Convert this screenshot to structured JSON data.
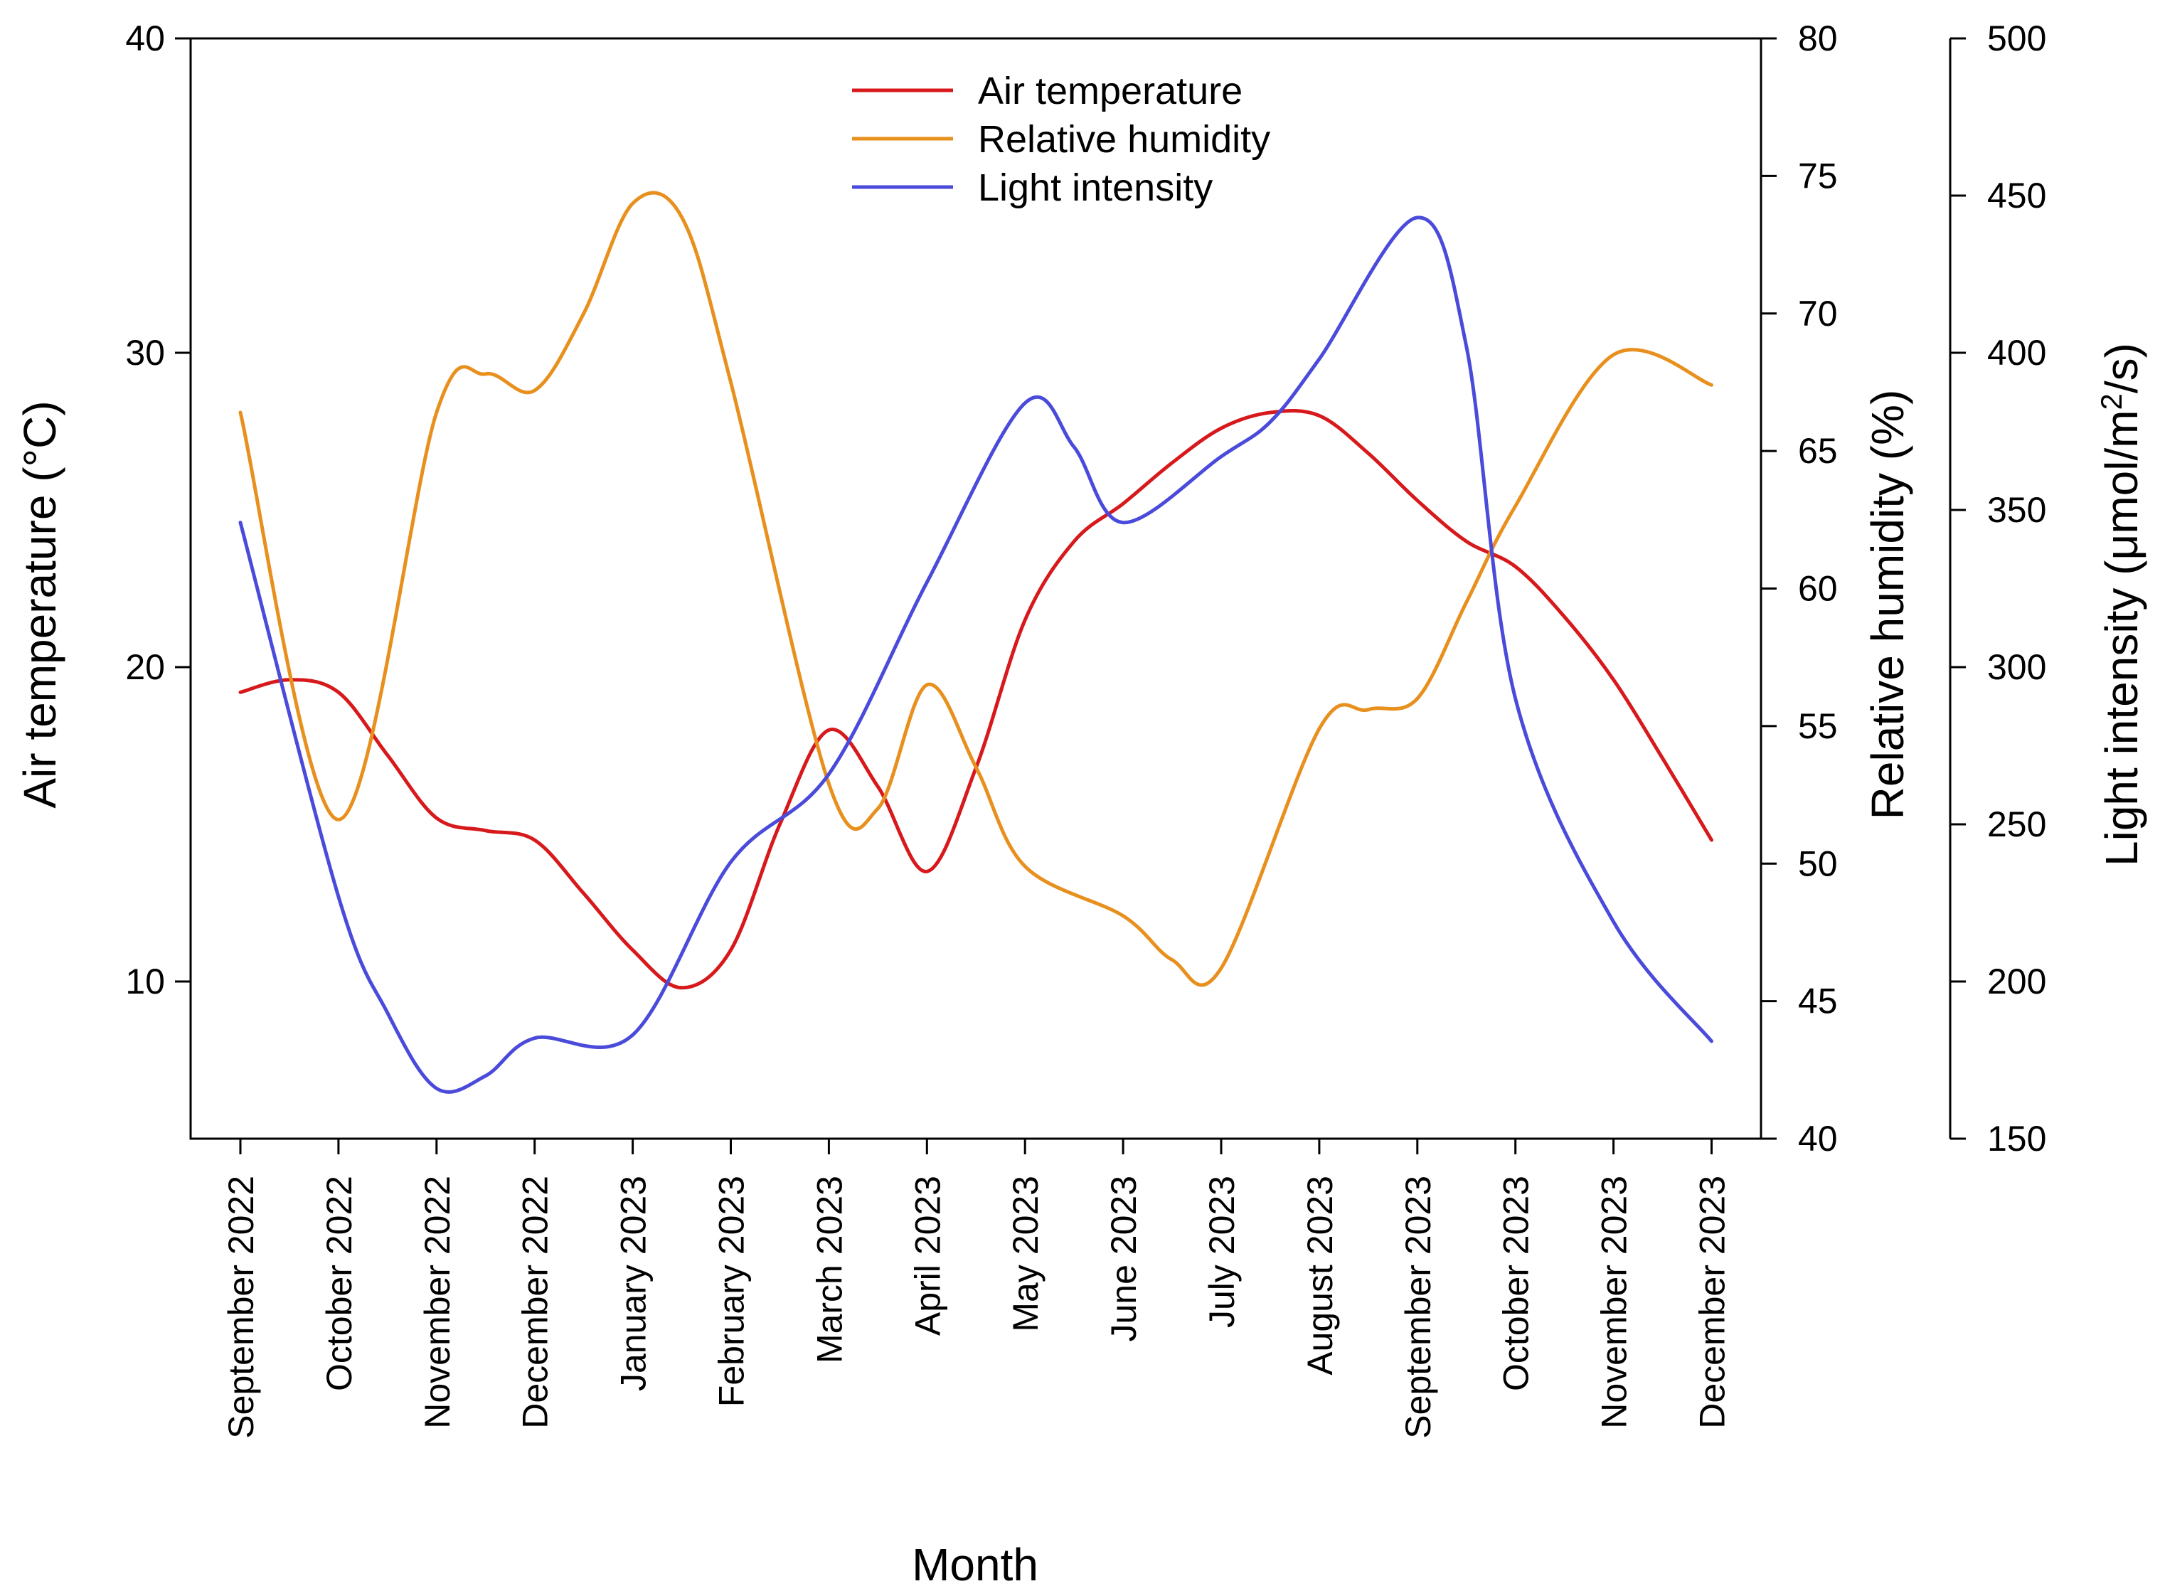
{
  "chart_data": {
    "type": "line",
    "xlabel": "Month",
    "categories": [
      "September 2022",
      "October 2022",
      "November 2022",
      "December 2022",
      "January 2023",
      "February 2023",
      "March 2023",
      "April 2023",
      "May 2023",
      "June 2023",
      "July 2023",
      "August 2023",
      "September 2023",
      "October 2023",
      "November 2023",
      "December 2023"
    ],
    "axes": {
      "left": {
        "label": "Air temperature (°C)",
        "range": [
          5,
          40
        ],
        "ticks": [
          10,
          20,
          30,
          40
        ]
      },
      "right1": {
        "label": "Relative humidity  (%)",
        "range": [
          40,
          80
        ],
        "ticks": [
          40,
          45,
          50,
          55,
          60,
          65,
          70,
          75,
          80
        ]
      },
      "right2": {
        "label_prefix": "Light intensity (μmol/m",
        "label_sup": "2",
        "label_suffix": "/s)",
        "range": [
          150,
          500
        ],
        "ticks": [
          150,
          200,
          250,
          300,
          350,
          400,
          450,
          500
        ]
      }
    },
    "series": [
      {
        "name": "Air temperature",
        "axis": "left",
        "color": "#d7191c",
        "points": [
          [
            0,
            19.2
          ],
          [
            0.5,
            19.6
          ],
          [
            1,
            19.2
          ],
          [
            1.5,
            17.2
          ],
          [
            2,
            15.2
          ],
          [
            2.5,
            14.8
          ],
          [
            3,
            14.5
          ],
          [
            3.5,
            12.8
          ],
          [
            4,
            11.0
          ],
          [
            4.5,
            9.8
          ],
          [
            5,
            11.0
          ],
          [
            5.5,
            15.0
          ],
          [
            6,
            18.0
          ],
          [
            6.5,
            16.2
          ],
          [
            7,
            13.5
          ],
          [
            7.5,
            16.8
          ],
          [
            8,
            21.5
          ],
          [
            8.5,
            24.0
          ],
          [
            9,
            25.2
          ],
          [
            9.5,
            26.5
          ],
          [
            10,
            27.6
          ],
          [
            10.5,
            28.1
          ],
          [
            11,
            28.0
          ],
          [
            11.5,
            26.8
          ],
          [
            12,
            25.3
          ],
          [
            12.5,
            24.0
          ],
          [
            13,
            23.2
          ],
          [
            13.5,
            21.6
          ],
          [
            14,
            19.6
          ],
          [
            14.5,
            17.1
          ],
          [
            15,
            14.5
          ]
        ]
      },
      {
        "name": "Relative humidity",
        "axis": "right1",
        "color": "#e8901e",
        "points": [
          [
            0,
            66.4
          ],
          [
            1,
            51.6
          ],
          [
            2,
            66.4
          ],
          [
            2.5,
            67.8
          ],
          [
            3,
            67.2
          ],
          [
            3.5,
            70.0
          ],
          [
            4,
            74.0
          ],
          [
            4.5,
            73.5
          ],
          [
            5,
            67.5
          ],
          [
            6,
            52.9
          ],
          [
            6.5,
            52.0
          ],
          [
            7,
            56.5
          ],
          [
            7.5,
            53.5
          ],
          [
            8,
            49.9
          ],
          [
            9,
            48.1
          ],
          [
            9.5,
            46.5
          ],
          [
            10,
            46.2
          ],
          [
            11,
            54.9
          ],
          [
            11.5,
            55.6
          ],
          [
            12,
            56.0
          ],
          [
            12.5,
            59.5
          ],
          [
            13,
            63.0
          ],
          [
            14,
            68.5
          ],
          [
            15,
            67.4
          ]
        ]
      },
      {
        "name": "Light intensity",
        "axis": "right2",
        "color": "#4a4adb",
        "points": [
          [
            0,
            346
          ],
          [
            1,
            227
          ],
          [
            1.5,
            190
          ],
          [
            2,
            166
          ],
          [
            2.5,
            170
          ],
          [
            3,
            182
          ],
          [
            4,
            183
          ],
          [
            5,
            238
          ],
          [
            6,
            266
          ],
          [
            7,
            327
          ],
          [
            8,
            384
          ],
          [
            8.5,
            370
          ],
          [
            9,
            346
          ],
          [
            10,
            367
          ],
          [
            10.5,
            378
          ],
          [
            11,
            398
          ],
          [
            12,
            443
          ],
          [
            12.5,
            402
          ],
          [
            13,
            290
          ],
          [
            14,
            219
          ],
          [
            15,
            181
          ]
        ]
      }
    ]
  }
}
